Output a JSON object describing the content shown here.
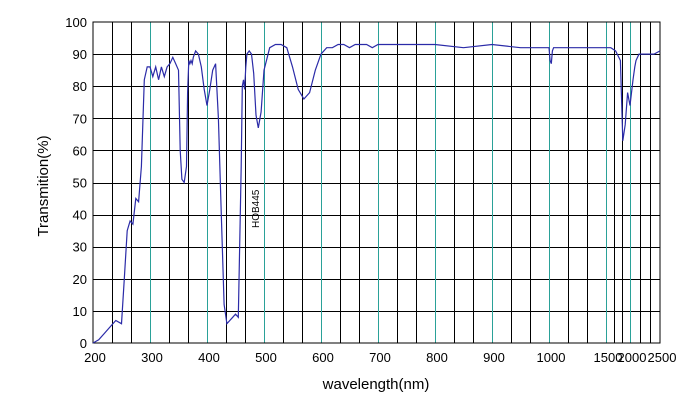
{
  "chart_data": {
    "type": "line",
    "title": "",
    "xlabel": "wavelength(nm)",
    "ylabel": "Transmition(%)",
    "ylim": [
      0,
      100
    ],
    "yticks": [
      "0",
      "10",
      "20",
      "30",
      "40",
      "50",
      "60",
      "70",
      "80",
      "90",
      "100"
    ],
    "xticks": [
      "200",
      "300",
      "400",
      "500",
      "600",
      "700",
      "800",
      "900",
      "1000",
      "1500",
      "2000",
      "2500"
    ],
    "x_scale": "piecewise",
    "grid": true,
    "colors": {
      "curve": "#2b2ba8",
      "major_grid": "#2aa198",
      "minor_grid": "#000000",
      "frame": "#000000"
    },
    "annotation": "HOB445",
    "series": [
      {
        "x": [
          200,
          210,
          220,
          230,
          240,
          250,
          255,
          260,
          265,
          270,
          275,
          280,
          285,
          290,
          295,
          300,
          305,
          310,
          315,
          320,
          325,
          330,
          335,
          340,
          345,
          350,
          353,
          356,
          360,
          364,
          366,
          368,
          370,
          372,
          374,
          376,
          380,
          385,
          390,
          395,
          400,
          405,
          410,
          415,
          420,
          425,
          430,
          435,
          440,
          445,
          450,
          455,
          460,
          462,
          464,
          466,
          468,
          470,
          474,
          478,
          482,
          486,
          490,
          495,
          500,
          510,
          520,
          530,
          540,
          550,
          560,
          570,
          580,
          590,
          600,
          610,
          620,
          630,
          640,
          650,
          660,
          670,
          680,
          690,
          700,
          750,
          800,
          850,
          900,
          950,
          980,
          1000,
          1010,
          1020,
          1030,
          1040,
          1050,
          1100,
          1200,
          1300,
          1400,
          1500,
          1600,
          1700,
          1800,
          1850,
          1900,
          1950,
          2000,
          2050,
          2080,
          2100,
          2150,
          2200,
          2300,
          2400,
          2500
        ],
        "y": [
          0,
          1,
          3,
          5,
          7,
          6,
          20,
          35,
          38,
          37,
          45,
          44,
          55,
          82,
          86,
          86,
          83,
          86,
          82,
          86,
          83,
          86,
          87,
          89,
          87,
          85,
          60,
          51,
          50,
          55,
          78,
          88,
          87,
          88,
          87,
          89,
          91,
          90,
          86,
          79,
          74,
          79,
          85,
          87,
          70,
          40,
          12,
          6,
          7,
          8,
          9,
          8,
          55,
          80,
          82,
          79,
          86,
          90,
          91,
          90,
          84,
          71,
          67,
          72,
          85,
          92,
          93,
          93,
          92,
          86,
          79,
          76,
          78,
          85,
          90,
          92,
          92,
          93,
          93,
          92,
          93,
          93,
          93,
          92,
          93,
          93,
          93,
          92,
          93,
          92,
          92,
          92,
          88,
          87,
          91,
          92,
          92,
          92,
          92,
          92,
          92,
          92,
          92,
          91,
          88,
          63,
          68,
          78,
          74,
          82,
          86,
          88,
          90,
          90,
          90,
          90,
          91
        ]
      }
    ]
  }
}
